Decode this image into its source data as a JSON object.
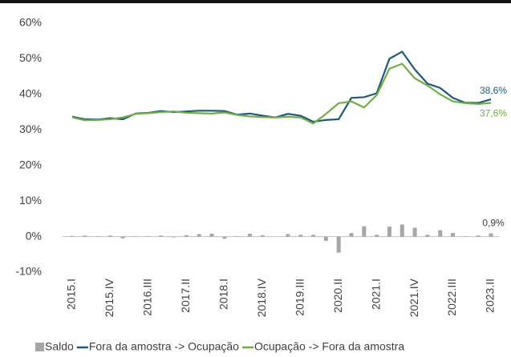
{
  "chart_data": {
    "type": "combo",
    "categories": [
      "2015.I",
      null,
      null,
      "2015.IV",
      null,
      null,
      "2016.III",
      null,
      null,
      "2017.II",
      null,
      null,
      "2018.I",
      null,
      null,
      "2018.IV",
      null,
      null,
      "2019.III",
      null,
      null,
      "2020.II",
      null,
      null,
      "2021.I",
      null,
      null,
      "2021.IV",
      null,
      null,
      "2022.III",
      null,
      null,
      "2023.II"
    ],
    "series": [
      {
        "name": "Saldo",
        "type": "bar",
        "color": "#a6a6a6",
        "values": [
          0.2,
          0.3,
          0.1,
          0.3,
          -0.5,
          0.1,
          0.1,
          0.3,
          -0.2,
          0.4,
          0.7,
          0.8,
          -0.6,
          0.1,
          0.8,
          0.4,
          0.0,
          0.7,
          0.5,
          0.5,
          -1.2,
          -4.5,
          1.0,
          2.9,
          0.5,
          2.8,
          3.4,
          2.5,
          0.5,
          1.8,
          1.0,
          0.1,
          0.3,
          0.9
        ],
        "value_labels": [
          null,
          null,
          null,
          null,
          null,
          null,
          null,
          null,
          null,
          null,
          null,
          null,
          null,
          null,
          null,
          null,
          null,
          null,
          null,
          null,
          null,
          null,
          null,
          null,
          null,
          null,
          null,
          null,
          null,
          null,
          null,
          null,
          null,
          "0,9%"
        ]
      },
      {
        "name": "Fora da amostra -> Ocupação",
        "type": "line",
        "color": "#1f5a7a",
        "values": [
          33.7,
          33.0,
          32.9,
          33.3,
          33.0,
          34.6,
          34.8,
          35.3,
          35.0,
          35.2,
          35.4,
          35.4,
          35.3,
          34.3,
          34.6,
          34.0,
          33.5,
          34.5,
          34.0,
          32.3,
          32.8,
          33.0,
          39.0,
          39.2,
          40.3,
          50.0,
          52.0,
          47.0,
          43.0,
          41.8,
          39.0,
          37.6,
          37.6,
          38.6
        ],
        "value_labels": [
          null,
          null,
          null,
          null,
          null,
          null,
          null,
          null,
          null,
          null,
          null,
          null,
          null,
          null,
          null,
          null,
          null,
          null,
          null,
          null,
          null,
          null,
          null,
          null,
          null,
          null,
          null,
          null,
          null,
          null,
          null,
          null,
          null,
          "38,6%"
        ]
      },
      {
        "name": "Ocupação -> Fora da amostra",
        "type": "line",
        "color": "#70ad47",
        "values": [
          33.5,
          32.7,
          32.8,
          33.0,
          33.5,
          34.5,
          34.7,
          35.0,
          35.2,
          34.8,
          34.7,
          34.6,
          34.9,
          34.2,
          33.8,
          33.6,
          33.5,
          33.7,
          33.5,
          31.8,
          34.5,
          37.5,
          38.0,
          36.3,
          39.8,
          47.2,
          48.6,
          44.5,
          42.5,
          40.0,
          38.0,
          37.5,
          37.3,
          37.6
        ],
        "value_labels": [
          null,
          null,
          null,
          null,
          null,
          null,
          null,
          null,
          null,
          null,
          null,
          null,
          null,
          null,
          null,
          null,
          null,
          null,
          null,
          null,
          null,
          null,
          null,
          null,
          null,
          null,
          null,
          null,
          null,
          null,
          null,
          null,
          null,
          "37,6%"
        ]
      }
    ],
    "ylim": [
      -10,
      60
    ],
    "yticks": [
      {
        "value": -10,
        "label": "-10%"
      },
      {
        "value": 0,
        "label": "0%"
      },
      {
        "value": 10,
        "label": "10%"
      },
      {
        "value": 20,
        "label": "20%"
      },
      {
        "value": 30,
        "label": "30%"
      },
      {
        "value": 40,
        "label": "40%"
      },
      {
        "value": 50,
        "label": "50%"
      },
      {
        "value": 60,
        "label": "60%"
      }
    ],
    "grid": false,
    "legend": "bottom"
  }
}
